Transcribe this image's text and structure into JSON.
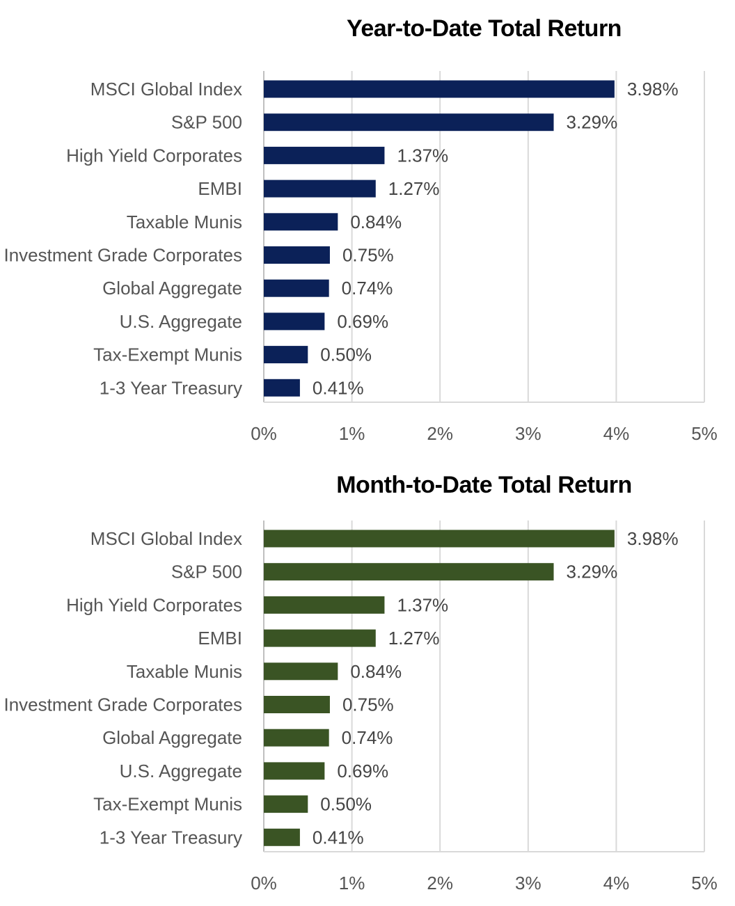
{
  "chart_data": [
    {
      "type": "bar",
      "orientation": "horizontal",
      "title": "Year-to-Date Total Return",
      "categories": [
        "MSCI Global Index",
        "S&P 500",
        "High Yield Corporates",
        "EMBI",
        "Taxable Munis",
        "Investment Grade Corporates",
        "Global Aggregate",
        "U.S. Aggregate",
        "Tax-Exempt Munis",
        "1-3 Year Treasury"
      ],
      "values": [
        3.98,
        3.29,
        1.37,
        1.27,
        0.84,
        0.75,
        0.74,
        0.69,
        0.5,
        0.41
      ],
      "value_labels": [
        "3.98%",
        "3.29%",
        "1.37%",
        "1.27%",
        "0.84%",
        "0.75%",
        "0.74%",
        "0.69%",
        "0.50%",
        "0.41%"
      ],
      "xlim": [
        0,
        5
      ],
      "xticks": [
        "0%",
        "1%",
        "2%",
        "3%",
        "4%",
        "5%"
      ],
      "grid": true,
      "color": "#0b2158"
    },
    {
      "type": "bar",
      "orientation": "horizontal",
      "title": "Month-to-Date Total Return",
      "categories": [
        "MSCI Global Index",
        "S&P 500",
        "High Yield Corporates",
        "EMBI",
        "Taxable Munis",
        "Investment Grade Corporates",
        "Global Aggregate",
        "U.S. Aggregate",
        "Tax-Exempt Munis",
        "1-3 Year Treasury"
      ],
      "values": [
        3.98,
        3.29,
        1.37,
        1.27,
        0.84,
        0.75,
        0.74,
        0.69,
        0.5,
        0.41
      ],
      "value_labels": [
        "3.98%",
        "3.29%",
        "1.37%",
        "1.27%",
        "0.84%",
        "0.75%",
        "0.74%",
        "0.69%",
        "0.50%",
        "0.41%"
      ],
      "xlim": [
        0,
        5
      ],
      "xticks": [
        "0%",
        "1%",
        "2%",
        "3%",
        "4%",
        "5%"
      ],
      "grid": true,
      "color": "#3a5424"
    }
  ]
}
